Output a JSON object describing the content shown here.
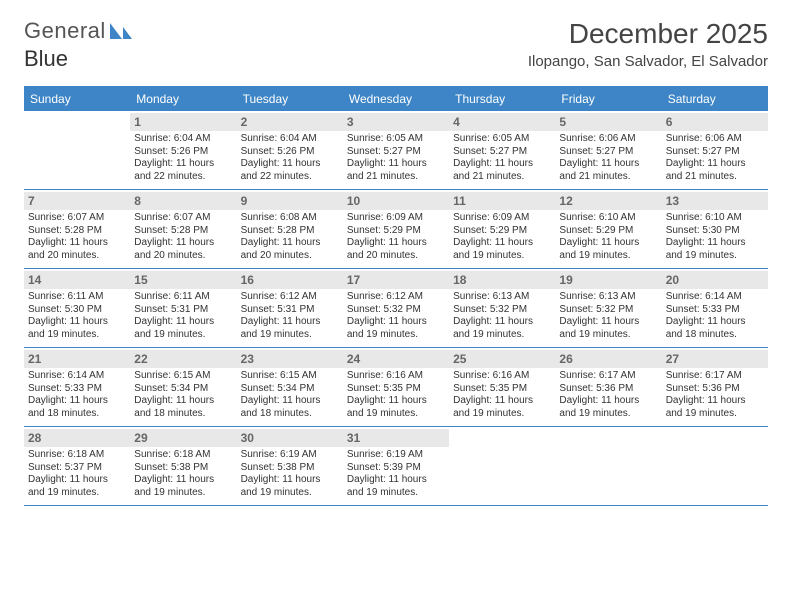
{
  "brand": {
    "word1": "General",
    "word2": "Blue",
    "word1_color": "#666666",
    "word2_color": "#3d85c6"
  },
  "title": "December 2025",
  "location": "Ilopango, San Salvador, El Salvador",
  "colors": {
    "header_bg": "#3d85c6",
    "header_text": "#ffffff",
    "rule": "#3d85c6",
    "daynum_bg": "#e8e8e8",
    "daynum_text": "#666666",
    "body_text": "#333333",
    "background": "#ffffff"
  },
  "typography": {
    "title_fontsize": 28,
    "location_fontsize": 15,
    "dayhead_fontsize": 12,
    "daynum_fontsize": 12,
    "cell_fontsize": 10
  },
  "day_headers": [
    "Sunday",
    "Monday",
    "Tuesday",
    "Wednesday",
    "Thursday",
    "Friday",
    "Saturday"
  ],
  "weeks": [
    [
      {
        "n": "",
        "sr": "",
        "ss": "",
        "dl": ""
      },
      {
        "n": "1",
        "sr": "Sunrise: 6:04 AM",
        "ss": "Sunset: 5:26 PM",
        "dl": "Daylight: 11 hours and 22 minutes."
      },
      {
        "n": "2",
        "sr": "Sunrise: 6:04 AM",
        "ss": "Sunset: 5:26 PM",
        "dl": "Daylight: 11 hours and 22 minutes."
      },
      {
        "n": "3",
        "sr": "Sunrise: 6:05 AM",
        "ss": "Sunset: 5:27 PM",
        "dl": "Daylight: 11 hours and 21 minutes."
      },
      {
        "n": "4",
        "sr": "Sunrise: 6:05 AM",
        "ss": "Sunset: 5:27 PM",
        "dl": "Daylight: 11 hours and 21 minutes."
      },
      {
        "n": "5",
        "sr": "Sunrise: 6:06 AM",
        "ss": "Sunset: 5:27 PM",
        "dl": "Daylight: 11 hours and 21 minutes."
      },
      {
        "n": "6",
        "sr": "Sunrise: 6:06 AM",
        "ss": "Sunset: 5:27 PM",
        "dl": "Daylight: 11 hours and 21 minutes."
      }
    ],
    [
      {
        "n": "7",
        "sr": "Sunrise: 6:07 AM",
        "ss": "Sunset: 5:28 PM",
        "dl": "Daylight: 11 hours and 20 minutes."
      },
      {
        "n": "8",
        "sr": "Sunrise: 6:07 AM",
        "ss": "Sunset: 5:28 PM",
        "dl": "Daylight: 11 hours and 20 minutes."
      },
      {
        "n": "9",
        "sr": "Sunrise: 6:08 AM",
        "ss": "Sunset: 5:28 PM",
        "dl": "Daylight: 11 hours and 20 minutes."
      },
      {
        "n": "10",
        "sr": "Sunrise: 6:09 AM",
        "ss": "Sunset: 5:29 PM",
        "dl": "Daylight: 11 hours and 20 minutes."
      },
      {
        "n": "11",
        "sr": "Sunrise: 6:09 AM",
        "ss": "Sunset: 5:29 PM",
        "dl": "Daylight: 11 hours and 19 minutes."
      },
      {
        "n": "12",
        "sr": "Sunrise: 6:10 AM",
        "ss": "Sunset: 5:29 PM",
        "dl": "Daylight: 11 hours and 19 minutes."
      },
      {
        "n": "13",
        "sr": "Sunrise: 6:10 AM",
        "ss": "Sunset: 5:30 PM",
        "dl": "Daylight: 11 hours and 19 minutes."
      }
    ],
    [
      {
        "n": "14",
        "sr": "Sunrise: 6:11 AM",
        "ss": "Sunset: 5:30 PM",
        "dl": "Daylight: 11 hours and 19 minutes."
      },
      {
        "n": "15",
        "sr": "Sunrise: 6:11 AM",
        "ss": "Sunset: 5:31 PM",
        "dl": "Daylight: 11 hours and 19 minutes."
      },
      {
        "n": "16",
        "sr": "Sunrise: 6:12 AM",
        "ss": "Sunset: 5:31 PM",
        "dl": "Daylight: 11 hours and 19 minutes."
      },
      {
        "n": "17",
        "sr": "Sunrise: 6:12 AM",
        "ss": "Sunset: 5:32 PM",
        "dl": "Daylight: 11 hours and 19 minutes."
      },
      {
        "n": "18",
        "sr": "Sunrise: 6:13 AM",
        "ss": "Sunset: 5:32 PM",
        "dl": "Daylight: 11 hours and 19 minutes."
      },
      {
        "n": "19",
        "sr": "Sunrise: 6:13 AM",
        "ss": "Sunset: 5:32 PM",
        "dl": "Daylight: 11 hours and 19 minutes."
      },
      {
        "n": "20",
        "sr": "Sunrise: 6:14 AM",
        "ss": "Sunset: 5:33 PM",
        "dl": "Daylight: 11 hours and 18 minutes."
      }
    ],
    [
      {
        "n": "21",
        "sr": "Sunrise: 6:14 AM",
        "ss": "Sunset: 5:33 PM",
        "dl": "Daylight: 11 hours and 18 minutes."
      },
      {
        "n": "22",
        "sr": "Sunrise: 6:15 AM",
        "ss": "Sunset: 5:34 PM",
        "dl": "Daylight: 11 hours and 18 minutes."
      },
      {
        "n": "23",
        "sr": "Sunrise: 6:15 AM",
        "ss": "Sunset: 5:34 PM",
        "dl": "Daylight: 11 hours and 18 minutes."
      },
      {
        "n": "24",
        "sr": "Sunrise: 6:16 AM",
        "ss": "Sunset: 5:35 PM",
        "dl": "Daylight: 11 hours and 19 minutes."
      },
      {
        "n": "25",
        "sr": "Sunrise: 6:16 AM",
        "ss": "Sunset: 5:35 PM",
        "dl": "Daylight: 11 hours and 19 minutes."
      },
      {
        "n": "26",
        "sr": "Sunrise: 6:17 AM",
        "ss": "Sunset: 5:36 PM",
        "dl": "Daylight: 11 hours and 19 minutes."
      },
      {
        "n": "27",
        "sr": "Sunrise: 6:17 AM",
        "ss": "Sunset: 5:36 PM",
        "dl": "Daylight: 11 hours and 19 minutes."
      }
    ],
    [
      {
        "n": "28",
        "sr": "Sunrise: 6:18 AM",
        "ss": "Sunset: 5:37 PM",
        "dl": "Daylight: 11 hours and 19 minutes."
      },
      {
        "n": "29",
        "sr": "Sunrise: 6:18 AM",
        "ss": "Sunset: 5:38 PM",
        "dl": "Daylight: 11 hours and 19 minutes."
      },
      {
        "n": "30",
        "sr": "Sunrise: 6:19 AM",
        "ss": "Sunset: 5:38 PM",
        "dl": "Daylight: 11 hours and 19 minutes."
      },
      {
        "n": "31",
        "sr": "Sunrise: 6:19 AM",
        "ss": "Sunset: 5:39 PM",
        "dl": "Daylight: 11 hours and 19 minutes."
      },
      {
        "n": "",
        "sr": "",
        "ss": "",
        "dl": ""
      },
      {
        "n": "",
        "sr": "",
        "ss": "",
        "dl": ""
      },
      {
        "n": "",
        "sr": "",
        "ss": "",
        "dl": ""
      }
    ]
  ]
}
